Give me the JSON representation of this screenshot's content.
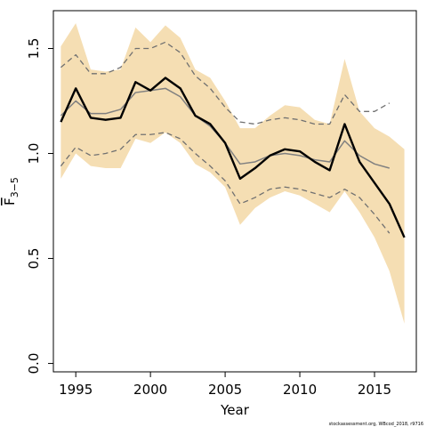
{
  "chart_data": {
    "type": "line",
    "xlabel": "Year",
    "ylabel": {
      "main": "F",
      "sub": "3−5"
    },
    "xlim": [
      1993.5,
      2017.8
    ],
    "ylim": [
      -0.04,
      1.68
    ],
    "x_ticks": [
      1995,
      2000,
      2005,
      2010,
      2015
    ],
    "x_tick_labels": [
      "1995",
      "2000",
      "2005",
      "2010",
      "2015"
    ],
    "y_ticks": [
      0.0,
      0.5,
      1.0,
      1.5
    ],
    "y_tick_labels": [
      "0.0",
      "0.5",
      "1.0",
      "1.5"
    ],
    "grid": false,
    "legend": "none",
    "credit": "stockassessment.org, WBcod_2018, r9716",
    "colors": {
      "band": "#f5deb3",
      "estimate": "#000000",
      "retro": "#808080",
      "retro_ci": "#707070"
    },
    "band": {
      "x": [
        1994,
        1995,
        1996,
        1997,
        1998,
        1999,
        2000,
        2001,
        2002,
        2003,
        2004,
        2005,
        2006,
        2007,
        2008,
        2009,
        2010,
        2011,
        2012,
        2013,
        2014,
        2015,
        2016,
        2017
      ],
      "upper": [
        1.51,
        1.62,
        1.4,
        1.39,
        1.4,
        1.6,
        1.53,
        1.61,
        1.55,
        1.4,
        1.36,
        1.25,
        1.12,
        1.12,
        1.18,
        1.23,
        1.22,
        1.16,
        1.14,
        1.45,
        1.2,
        1.12,
        1.08,
        1.02
      ],
      "lower": [
        0.88,
        1.0,
        0.94,
        0.93,
        0.93,
        1.07,
        1.05,
        1.1,
        1.05,
        0.95,
        0.91,
        0.84,
        0.66,
        0.74,
        0.79,
        0.82,
        0.8,
        0.76,
        0.72,
        0.82,
        0.72,
        0.6,
        0.44,
        0.19
      ]
    },
    "series": [
      {
        "role": "estimate",
        "style": "solid-thick",
        "x": [
          1994,
          1995,
          1996,
          1997,
          1998,
          1999,
          2000,
          2001,
          2002,
          2003,
          2004,
          2005,
          2006,
          2007,
          2008,
          2009,
          2010,
          2011,
          2012,
          2013,
          2014,
          2015,
          2016,
          2017
        ],
        "values": [
          1.15,
          1.31,
          1.17,
          1.16,
          1.17,
          1.34,
          1.3,
          1.36,
          1.31,
          1.18,
          1.14,
          1.05,
          0.88,
          0.93,
          0.99,
          1.02,
          1.01,
          0.96,
          0.92,
          1.14,
          0.96,
          0.86,
          0.76,
          0.6
        ]
      },
      {
        "role": "retro",
        "style": "solid-thin",
        "x": [
          1994,
          1995,
          1996,
          1997,
          1998,
          1999,
          2000,
          2001,
          2002,
          2003,
          2004,
          2005,
          2006,
          2007,
          2008,
          2009,
          2010,
          2011,
          2012,
          2013,
          2014,
          2015,
          2016
        ],
        "values": [
          1.18,
          1.25,
          1.19,
          1.19,
          1.21,
          1.29,
          1.3,
          1.31,
          1.27,
          1.18,
          1.13,
          1.05,
          0.95,
          0.96,
          0.99,
          1.0,
          0.99,
          0.97,
          0.96,
          1.06,
          0.99,
          0.95,
          0.93
        ]
      },
      {
        "role": "retro-upper",
        "style": "dashed",
        "x": [
          1994,
          1995,
          1996,
          1997,
          1998,
          1999,
          2000,
          2001,
          2002,
          2003,
          2004,
          2005,
          2006,
          2007,
          2008,
          2009,
          2010,
          2011,
          2012,
          2013,
          2014,
          2015,
          2016
        ],
        "values": [
          1.41,
          1.47,
          1.38,
          1.38,
          1.41,
          1.5,
          1.5,
          1.53,
          1.48,
          1.37,
          1.31,
          1.22,
          1.15,
          1.14,
          1.16,
          1.17,
          1.16,
          1.14,
          1.14,
          1.28,
          1.2,
          1.2,
          1.24
        ]
      },
      {
        "role": "retro-lower",
        "style": "dashed",
        "x": [
          1994,
          1995,
          1996,
          1997,
          1998,
          1999,
          2000,
          2001,
          2002,
          2003,
          2004,
          2005,
          2006,
          2007,
          2008,
          2009,
          2010,
          2011,
          2012,
          2013,
          2014,
          2015,
          2016
        ],
        "values": [
          0.94,
          1.03,
          0.99,
          1.0,
          1.02,
          1.09,
          1.09,
          1.1,
          1.07,
          1.0,
          0.94,
          0.87,
          0.76,
          0.79,
          0.83,
          0.84,
          0.83,
          0.81,
          0.79,
          0.83,
          0.79,
          0.71,
          0.62
        ]
      }
    ]
  }
}
